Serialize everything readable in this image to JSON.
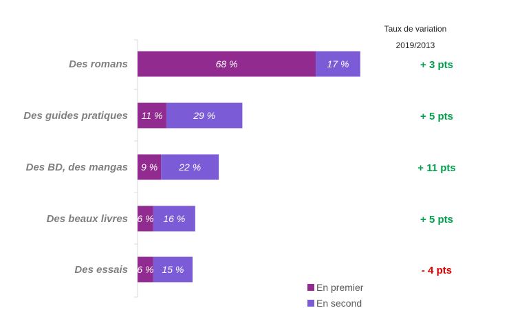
{
  "chart_data": {
    "type": "bar",
    "orientation": "horizontal",
    "stacked": true,
    "categories": [
      "Des romans",
      "Des guides pratiques",
      "Des BD, des mangas",
      "Des beaux livres",
      "Des essais"
    ],
    "series": [
      {
        "name": "En premier",
        "values": [
          68,
          11,
          9,
          6,
          6
        ],
        "labels": [
          "68 %",
          "11 %",
          "9 %",
          "6 %",
          "6 %"
        ],
        "color": "#922b8f"
      },
      {
        "name": "En second",
        "values": [
          17,
          29,
          22,
          16,
          15
        ],
        "labels": [
          "17 %",
          "29 %",
          "22 %",
          "16 %",
          "15 %"
        ],
        "color": "#7b5cd6"
      }
    ],
    "variation": {
      "title_line1": "Taux de variation",
      "title_line2": "2019/2013",
      "values": [
        "+ 3 pts",
        "+ 5 pts",
        "+ 11 pts",
        "+ 5 pts",
        "- 4 pts"
      ],
      "colors": [
        "#00a04a",
        "#00a04a",
        "#00a04a",
        "#00a04a",
        "#e00000"
      ]
    },
    "legend_position": "bottom-right",
    "grid": false
  }
}
